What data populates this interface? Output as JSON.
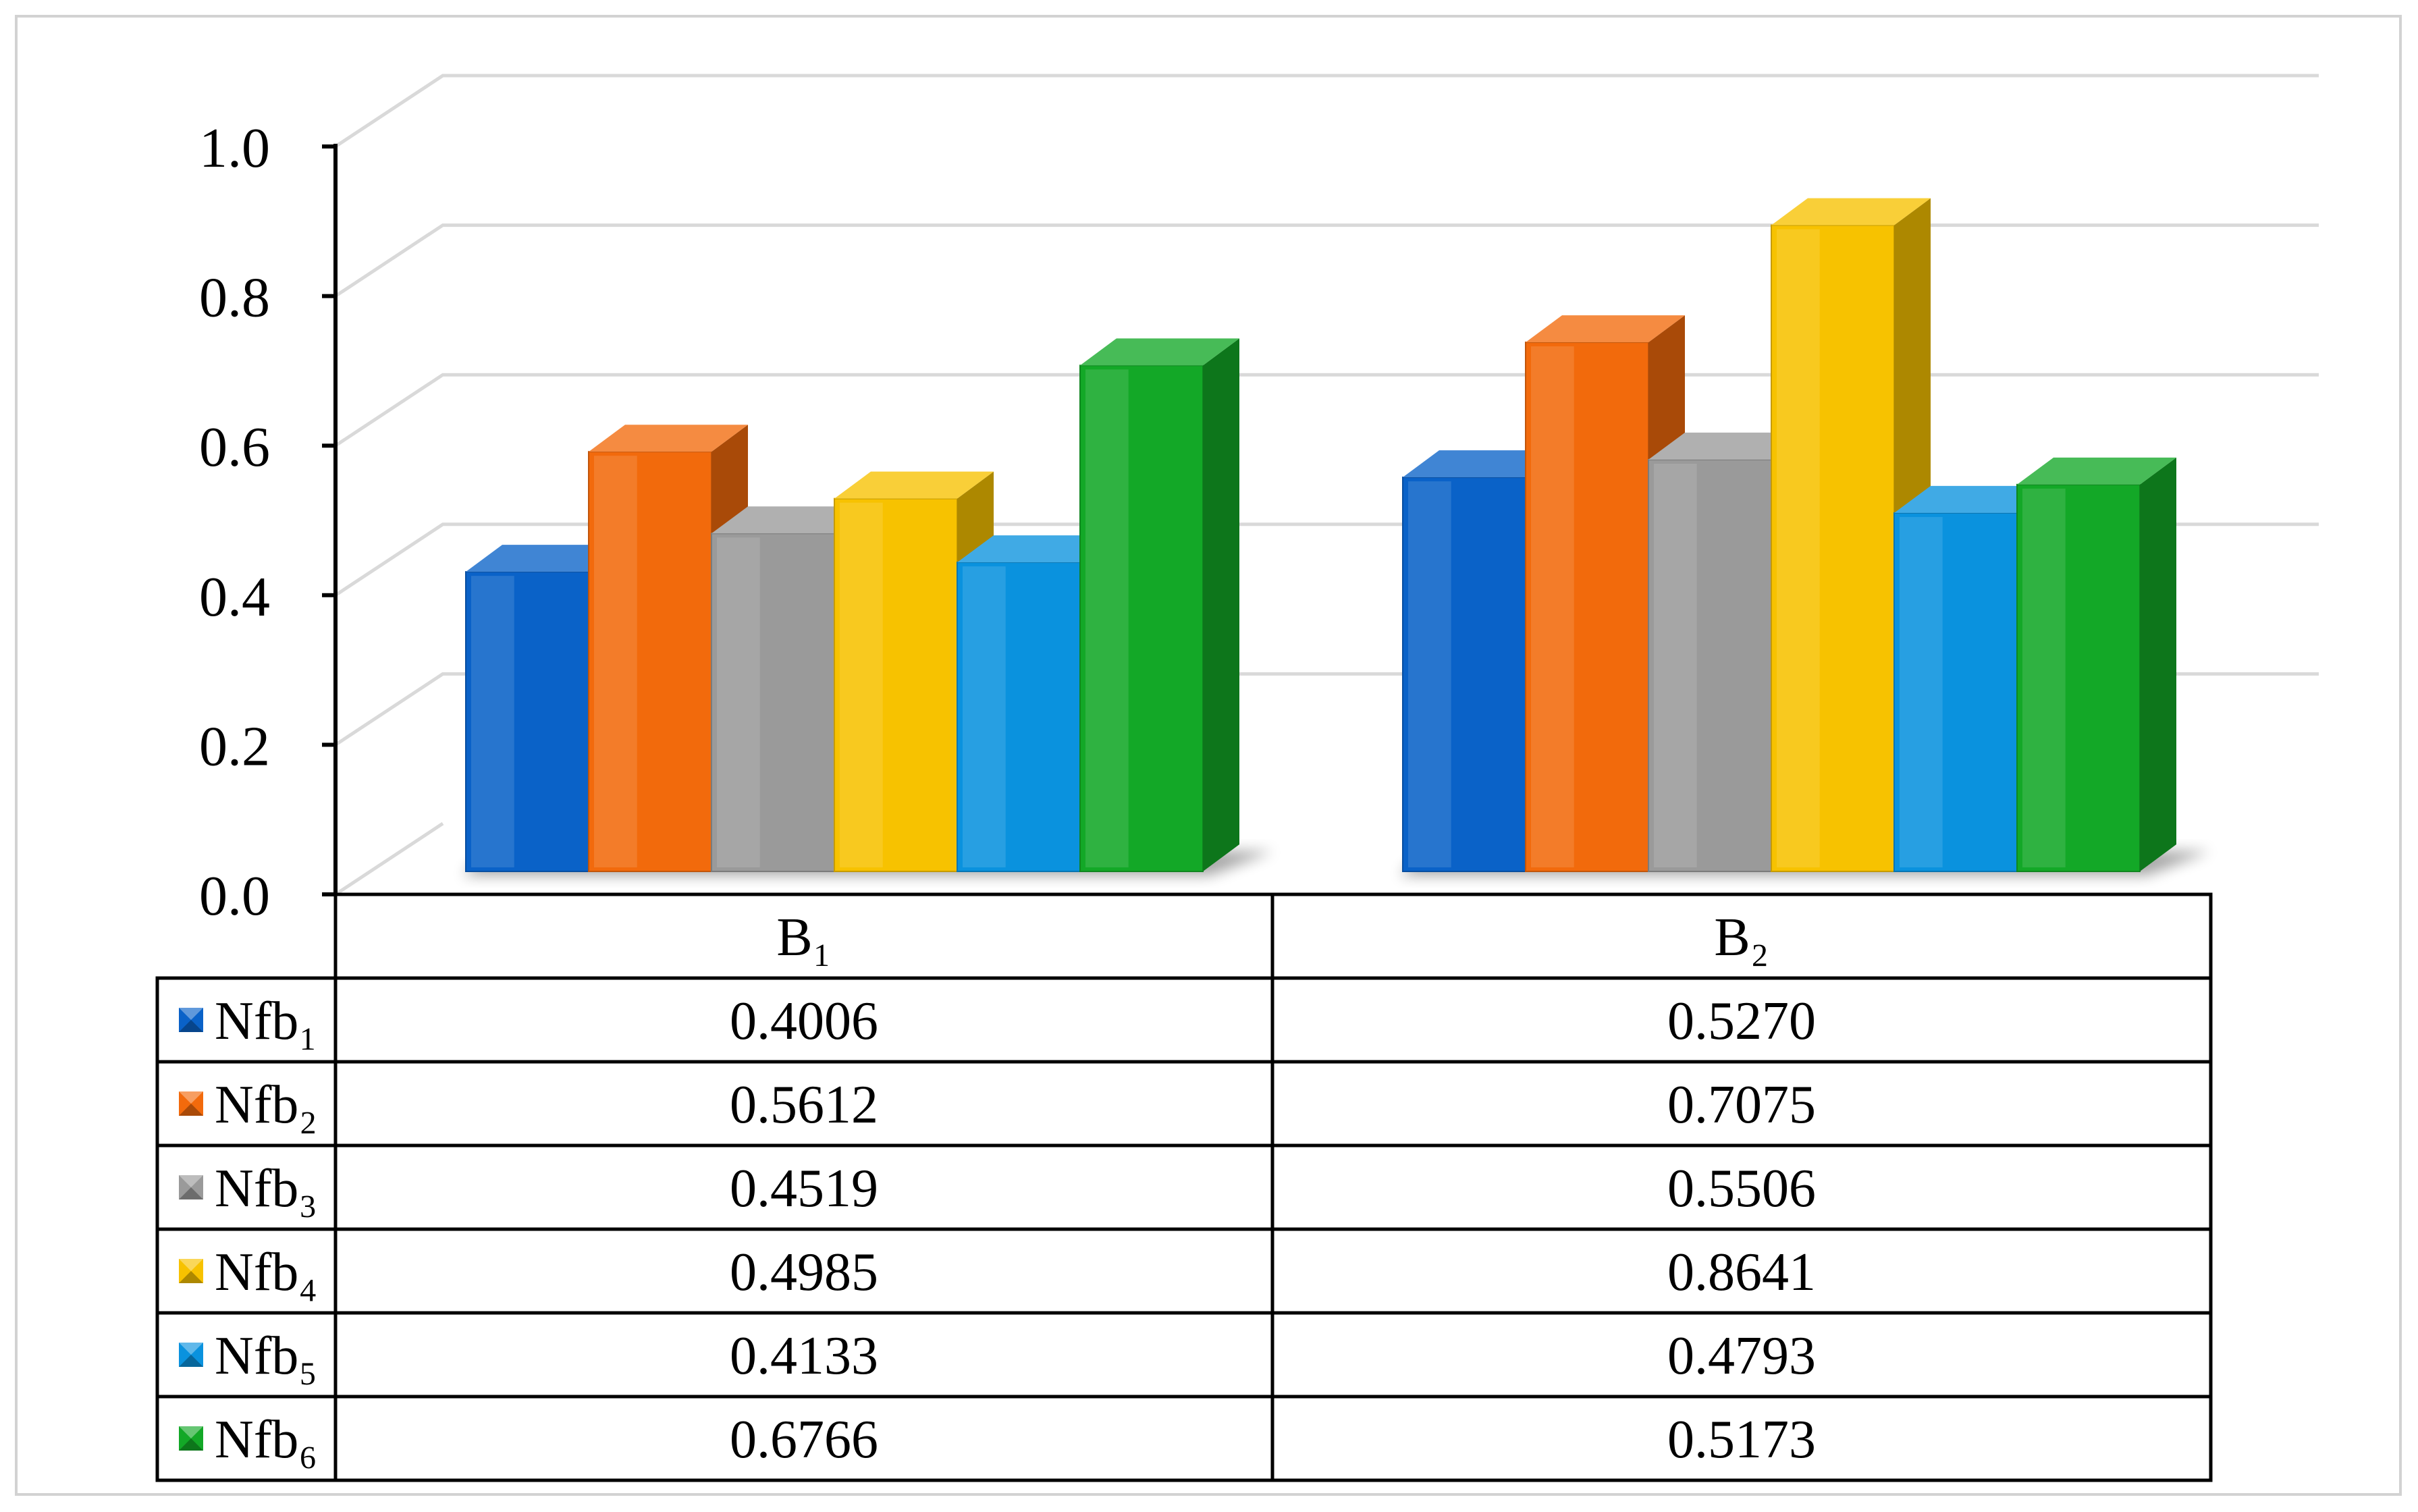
{
  "chart_data": {
    "type": "bar",
    "categories": [
      "B₁",
      "B₂"
    ],
    "series": [
      {
        "name": "Nfb₁",
        "values": [
          0.4006,
          0.527
        ],
        "color": "#0a62c8",
        "value_labels": [
          "0.4006",
          "0.5270"
        ]
      },
      {
        "name": "Nfb₂",
        "values": [
          0.5612,
          0.7075
        ],
        "color": "#f26a0c",
        "value_labels": [
          "0.5612",
          "0.7075"
        ]
      },
      {
        "name": "Nfb₃",
        "values": [
          0.4519,
          0.5506
        ],
        "color": "#9a9a9a",
        "value_labels": [
          "0.4519",
          "0.5506"
        ]
      },
      {
        "name": "Nfb₄",
        "values": [
          0.4985,
          0.8641
        ],
        "color": "#f7c200",
        "value_labels": [
          "0.4985",
          "0.8641"
        ]
      },
      {
        "name": "Nfb₅",
        "values": [
          0.4133,
          0.4793
        ],
        "color": "#0a92de",
        "value_labels": [
          "0.4133",
          "0.4793"
        ]
      },
      {
        "name": "Nfb₆",
        "values": [
          0.6766,
          0.5173
        ],
        "color": "#13a827",
        "value_labels": [
          "0.6766",
          "0.5173"
        ]
      }
    ],
    "ylim": [
      0,
      1.0
    ],
    "yticks": [
      "0.0",
      "0.2",
      "0.4",
      "0.6",
      "0.8",
      "1.0"
    ],
    "grid": true,
    "style": "3d-columns",
    "legend": "data-table-below"
  }
}
